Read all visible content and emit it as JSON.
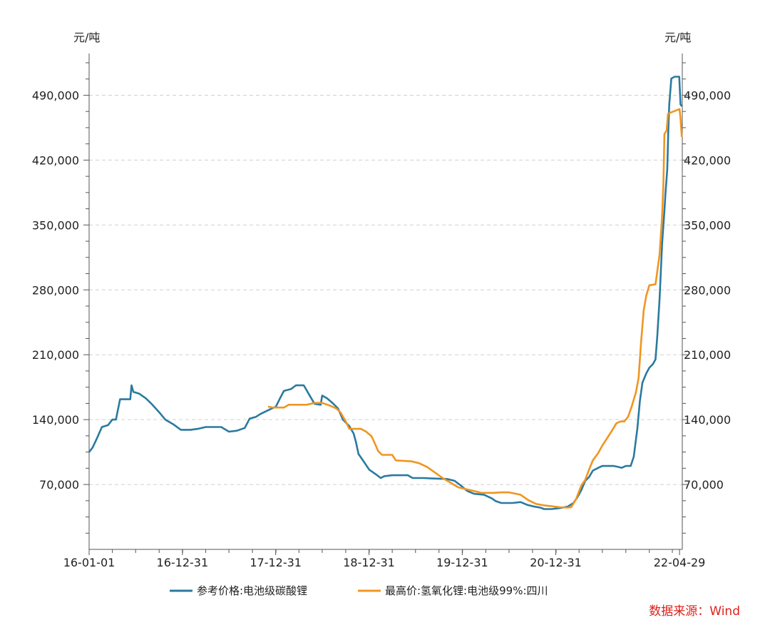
{
  "chart_data": {
    "type": "line",
    "y_unit_left": "元/吨",
    "y_unit_right": "元/吨",
    "ylim": [
      0,
      535000
    ],
    "y_ticks": [
      70000,
      140000,
      210000,
      280000,
      350000,
      420000,
      490000
    ],
    "y_tick_labels": [
      "70,000",
      "140,000",
      "210,000",
      "280,000",
      "350,000",
      "420,000",
      "490,000"
    ],
    "x_range": [
      "2016-01-01",
      "2022-05-10"
    ],
    "x_ticks": [
      "2016-01-01",
      "2016-12-31",
      "2017-12-31",
      "2018-12-31",
      "2019-12-31",
      "2020-12-31",
      "2022-04-29"
    ],
    "x_tick_labels": [
      "16-01-01",
      "16-12-31",
      "17-12-31",
      "18-12-31",
      "19-12-31",
      "20-12-31",
      "22-04-29"
    ],
    "grid": "horizontal dashed",
    "legend_position": "bottom",
    "series": [
      {
        "name": "参考价格:电池级碳酸锂",
        "color": "#2a7aa0",
        "points": [
          [
            "2016-01-01",
            105000
          ],
          [
            "2016-01-15",
            110000
          ],
          [
            "2016-02-01",
            120000
          ],
          [
            "2016-02-20",
            132000
          ],
          [
            "2016-03-15",
            134000
          ],
          [
            "2016-04-01",
            140000
          ],
          [
            "2016-04-15",
            140000
          ],
          [
            "2016-05-01",
            162000
          ],
          [
            "2016-06-10",
            162000
          ],
          [
            "2016-06-15",
            177000
          ],
          [
            "2016-06-22",
            170000
          ],
          [
            "2016-07-15",
            168000
          ],
          [
            "2016-08-10",
            163000
          ],
          [
            "2016-09-01",
            157000
          ],
          [
            "2016-10-01",
            148000
          ],
          [
            "2016-10-25",
            140000
          ],
          [
            "2016-11-25",
            135000
          ],
          [
            "2016-12-25",
            129000
          ],
          [
            "2017-02-01",
            129000
          ],
          [
            "2017-03-01",
            130000
          ],
          [
            "2017-04-01",
            132000
          ],
          [
            "2017-06-01",
            132000
          ],
          [
            "2017-07-01",
            127000
          ],
          [
            "2017-08-01",
            128000
          ],
          [
            "2017-09-01",
            131000
          ],
          [
            "2017-09-20",
            141000
          ],
          [
            "2017-10-15",
            143000
          ],
          [
            "2017-11-01",
            146000
          ],
          [
            "2017-12-01",
            150000
          ],
          [
            "2018-01-01",
            154000
          ],
          [
            "2018-01-15",
            162000
          ],
          [
            "2018-02-01",
            171000
          ],
          [
            "2018-03-01",
            173000
          ],
          [
            "2018-03-20",
            177000
          ],
          [
            "2018-04-20",
            177000
          ],
          [
            "2018-05-15",
            165000
          ],
          [
            "2018-06-01",
            157000
          ],
          [
            "2018-06-25",
            156000
          ],
          [
            "2018-07-01",
            166000
          ],
          [
            "2018-07-20",
            163000
          ],
          [
            "2018-08-10",
            158000
          ],
          [
            "2018-09-01",
            152000
          ],
          [
            "2018-09-20",
            140000
          ],
          [
            "2018-10-15",
            133000
          ],
          [
            "2018-11-01",
            125000
          ],
          [
            "2018-11-10",
            116000
          ],
          [
            "2018-11-20",
            103000
          ],
          [
            "2018-12-10",
            95000
          ],
          [
            "2019-01-01",
            86000
          ],
          [
            "2019-02-01",
            80000
          ],
          [
            "2019-02-15",
            77000
          ],
          [
            "2019-03-01",
            79000
          ],
          [
            "2019-04-01",
            80000
          ],
          [
            "2019-06-01",
            80000
          ],
          [
            "2019-06-20",
            77000
          ],
          [
            "2019-08-01",
            77000
          ],
          [
            "2019-09-01",
            76500
          ],
          [
            "2019-11-01",
            76000
          ],
          [
            "2019-12-01",
            74000
          ],
          [
            "2019-12-25",
            69000
          ],
          [
            "2020-01-20",
            63000
          ],
          [
            "2020-02-15",
            60000
          ],
          [
            "2020-03-25",
            59000
          ],
          [
            "2020-04-25",
            55000
          ],
          [
            "2020-05-10",
            52000
          ],
          [
            "2020-06-01",
            50000
          ],
          [
            "2020-07-15",
            50000
          ],
          [
            "2020-08-15",
            51000
          ],
          [
            "2020-09-10",
            48000
          ],
          [
            "2020-10-10",
            46000
          ],
          [
            "2020-11-01",
            45000
          ],
          [
            "2020-11-15",
            43500
          ],
          [
            "2020-12-15",
            43500
          ],
          [
            "2021-01-15",
            44500
          ],
          [
            "2021-02-15",
            46000
          ],
          [
            "2021-03-10",
            50000
          ],
          [
            "2021-03-25",
            56000
          ],
          [
            "2021-04-10",
            64000
          ],
          [
            "2021-04-25",
            74000
          ],
          [
            "2021-05-10",
            78000
          ],
          [
            "2021-05-25",
            85000
          ],
          [
            "2021-06-15",
            88000
          ],
          [
            "2021-07-01",
            90000
          ],
          [
            "2021-08-15",
            90000
          ],
          [
            "2021-09-01",
            89000
          ],
          [
            "2021-09-15",
            88000
          ],
          [
            "2021-10-01",
            90000
          ],
          [
            "2021-10-20",
            90000
          ],
          [
            "2021-11-01",
            100000
          ],
          [
            "2021-11-15",
            130000
          ],
          [
            "2021-11-25",
            160000
          ],
          [
            "2021-12-05",
            180000
          ],
          [
            "2021-12-20",
            190000
          ],
          [
            "2022-01-01",
            196000
          ],
          [
            "2022-01-15",
            200000
          ],
          [
            "2022-01-25",
            205000
          ],
          [
            "2022-02-01",
            230000
          ],
          [
            "2022-02-10",
            270000
          ],
          [
            "2022-02-20",
            330000
          ],
          [
            "2022-03-01",
            365000
          ],
          [
            "2022-03-05",
            383000
          ],
          [
            "2022-03-12",
            410000
          ],
          [
            "2022-03-16",
            450000
          ],
          [
            "2022-03-20",
            480000
          ],
          [
            "2022-03-28",
            508000
          ],
          [
            "2022-04-10",
            510000
          ],
          [
            "2022-04-28",
            510000
          ],
          [
            "2022-05-03",
            480000
          ],
          [
            "2022-05-08",
            478000
          ]
        ]
      },
      {
        "name": "最高价:氢氧化锂:电池级99%:四川",
        "color": "#f09520",
        "points": [
          [
            "2017-12-01",
            154000
          ],
          [
            "2017-12-20",
            153000
          ],
          [
            "2018-02-01",
            153000
          ],
          [
            "2018-02-20",
            156000
          ],
          [
            "2018-05-01",
            156000
          ],
          [
            "2018-06-01",
            158000
          ],
          [
            "2018-07-01",
            158000
          ],
          [
            "2018-08-01",
            155000
          ],
          [
            "2018-08-25",
            152000
          ],
          [
            "2018-09-10",
            148000
          ],
          [
            "2018-10-01",
            138000
          ],
          [
            "2018-10-15",
            130000
          ],
          [
            "2018-11-30",
            130000
          ],
          [
            "2018-12-20",
            127000
          ],
          [
            "2019-01-10",
            122000
          ],
          [
            "2019-01-25",
            113000
          ],
          [
            "2019-02-05",
            106000
          ],
          [
            "2019-02-20",
            102000
          ],
          [
            "2019-04-01",
            102000
          ],
          [
            "2019-04-15",
            96000
          ],
          [
            "2019-05-15",
            95500
          ],
          [
            "2019-06-15",
            95000
          ],
          [
            "2019-07-15",
            93000
          ],
          [
            "2019-08-15",
            89000
          ],
          [
            "2019-09-15",
            83000
          ],
          [
            "2019-10-15",
            77000
          ],
          [
            "2019-11-15",
            72000
          ],
          [
            "2019-12-15",
            67000
          ],
          [
            "2020-01-15",
            65000
          ],
          [
            "2020-02-15",
            63000
          ],
          [
            "2020-03-15",
            61000
          ],
          [
            "2020-05-01",
            61000
          ],
          [
            "2020-06-01",
            61500
          ],
          [
            "2020-07-01",
            61500
          ],
          [
            "2020-08-15",
            59000
          ],
          [
            "2020-09-15",
            53000
          ],
          [
            "2020-10-15",
            49000
          ],
          [
            "2020-11-15",
            47500
          ],
          [
            "2020-12-15",
            46500
          ],
          [
            "2021-01-15",
            45500
          ],
          [
            "2021-02-15",
            45000
          ],
          [
            "2021-03-01",
            45500
          ],
          [
            "2021-03-20",
            54000
          ],
          [
            "2021-04-10",
            69000
          ],
          [
            "2021-04-25",
            75000
          ],
          [
            "2021-05-10",
            86000
          ],
          [
            "2021-05-25",
            96000
          ],
          [
            "2021-06-15",
            104000
          ],
          [
            "2021-07-01",
            112000
          ],
          [
            "2021-07-20",
            120000
          ],
          [
            "2021-08-10",
            129000
          ],
          [
            "2021-08-25",
            136000
          ],
          [
            "2021-09-10",
            138000
          ],
          [
            "2021-09-25",
            138000
          ],
          [
            "2021-10-10",
            143000
          ],
          [
            "2021-10-25",
            155000
          ],
          [
            "2021-11-10",
            170000
          ],
          [
            "2021-11-20",
            185000
          ],
          [
            "2021-11-30",
            225000
          ],
          [
            "2021-12-10",
            258000
          ],
          [
            "2021-12-20",
            274000
          ],
          [
            "2022-01-01",
            285000
          ],
          [
            "2022-01-25",
            286000
          ],
          [
            "2022-02-01",
            300000
          ],
          [
            "2022-02-10",
            318000
          ],
          [
            "2022-02-20",
            360000
          ],
          [
            "2022-02-25",
            395000
          ],
          [
            "2022-03-01",
            448000
          ],
          [
            "2022-03-10",
            452000
          ],
          [
            "2022-03-15",
            470000
          ],
          [
            "2022-04-01",
            472000
          ],
          [
            "2022-04-20",
            474000
          ],
          [
            "2022-04-29",
            475000
          ],
          [
            "2022-05-03",
            465000
          ],
          [
            "2022-05-08",
            445000
          ]
        ]
      }
    ]
  },
  "footer": {
    "source": "数据来源：Wind"
  }
}
